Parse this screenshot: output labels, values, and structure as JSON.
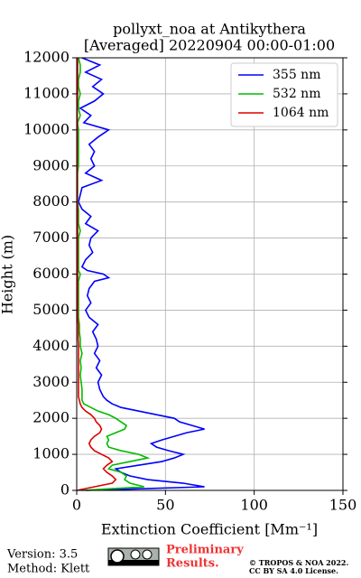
{
  "chart_data": {
    "type": "profile",
    "title": "pollyxt_noa at Antikythera",
    "subtitle": "[Averaged] 20220904 00:00-01:00",
    "x_label": "Extinction Coefficient [Mm⁻¹]",
    "y_label": "Height (m)",
    "xlim": [
      0,
      150
    ],
    "xticks": [
      0,
      50,
      100,
      150
    ],
    "ylim": [
      0,
      12000
    ],
    "yticks": [
      0,
      1000,
      2000,
      3000,
      4000,
      5000,
      6000,
      7000,
      8000,
      9000,
      10000,
      11000,
      12000
    ],
    "grid": true,
    "legend": "upper right",
    "heights": [
      0,
      100,
      200,
      300,
      400,
      500,
      600,
      700,
      800,
      900,
      1000,
      1100,
      1200,
      1300,
      1400,
      1500,
      1600,
      1700,
      1800,
      1900,
      2000,
      2100,
      2200,
      2300,
      2400,
      2500,
      2600,
      2800,
      3000,
      3200,
      3400,
      3600,
      3800,
      4000,
      4200,
      4400,
      4600,
      4800,
      5000,
      5200,
      5400,
      5600,
      5800,
      5900,
      6000,
      6100,
      6200,
      6400,
      6600,
      6800,
      7000,
      7200,
      7400,
      7600,
      7800,
      8000,
      8200,
      8400,
      8600,
      8800,
      9000,
      9200,
      9400,
      9600,
      9800,
      10000,
      10200,
      10400,
      10600,
      10800,
      11000,
      11200,
      11400,
      11600,
      11800,
      12000
    ],
    "series": [
      {
        "name": "355 nm",
        "color": "#0000ff",
        "values": [
          5,
          72,
          60,
          40,
          30,
          25,
          22,
          35,
          48,
          55,
          60,
          52,
          45,
          42,
          48,
          55,
          62,
          72,
          65,
          58,
          55,
          45,
          35,
          25,
          20,
          17,
          15,
          13,
          12,
          14,
          11,
          13,
          10,
          12,
          11,
          9,
          12,
          7,
          5,
          8,
          6,
          7,
          10,
          18,
          15,
          6,
          3,
          5,
          9,
          7,
          8,
          12,
          5,
          8,
          3,
          1,
          2,
          3,
          14,
          5,
          10,
          8,
          10,
          7,
          12,
          18,
          4,
          8,
          2,
          10,
          15,
          9,
          14,
          5,
          13,
          3
        ]
      },
      {
        "name": "532 nm",
        "color": "#00bb00",
        "values": [
          3,
          38,
          30,
          27,
          28,
          25,
          18,
          20,
          30,
          40,
          35,
          25,
          18,
          17,
          18,
          17,
          22,
          27,
          28,
          25,
          22,
          18,
          12,
          8,
          4,
          3,
          3,
          3,
          2.5,
          2,
          2.5,
          2,
          3,
          2,
          2,
          1.5,
          1.5,
          1,
          1,
          1,
          1,
          1,
          1,
          1.5,
          2,
          1,
          1,
          1,
          1,
          1,
          1,
          2,
          1,
          1,
          1,
          0.5,
          0.5,
          0.5,
          0.5,
          0.5,
          1,
          1,
          1,
          1,
          1,
          1,
          0.5,
          2,
          1,
          1,
          2,
          1,
          1,
          2,
          2,
          1
        ]
      },
      {
        "name": "1064 nm",
        "color": "#dd0000",
        "values": [
          0,
          10,
          20,
          22,
          20,
          17,
          15,
          17,
          20,
          18,
          14,
          10,
          8,
          7,
          8,
          10,
          13,
          14,
          13,
          11,
          10,
          8,
          5,
          3,
          2,
          1.5,
          1,
          1,
          1,
          1,
          1,
          1,
          1,
          1,
          0.8,
          0.8,
          0.8,
          0.5,
          0.5,
          0.5,
          0.5,
          0.5,
          0.5,
          0.5,
          0.5,
          0.5,
          0.5,
          0.5,
          0.5,
          0.5,
          0.5,
          0.5,
          0.5,
          0.5,
          0.5,
          0.3,
          0.3,
          0.3,
          0.3,
          0.3,
          0.3,
          0.3,
          0.3,
          0.3,
          0.3,
          0.3,
          0.3,
          0.3,
          0.3,
          0.3,
          0.5,
          0.5,
          0.5,
          0.5,
          0.5,
          0.5
        ]
      }
    ]
  },
  "footer": {
    "version": "Version: 3.5",
    "method": "Method: Klett",
    "preliminary": "Preliminary",
    "results": "Results.",
    "copyright": "© TROPOS & NOA 2022.",
    "license": "CC BY SA 4.0 License."
  }
}
